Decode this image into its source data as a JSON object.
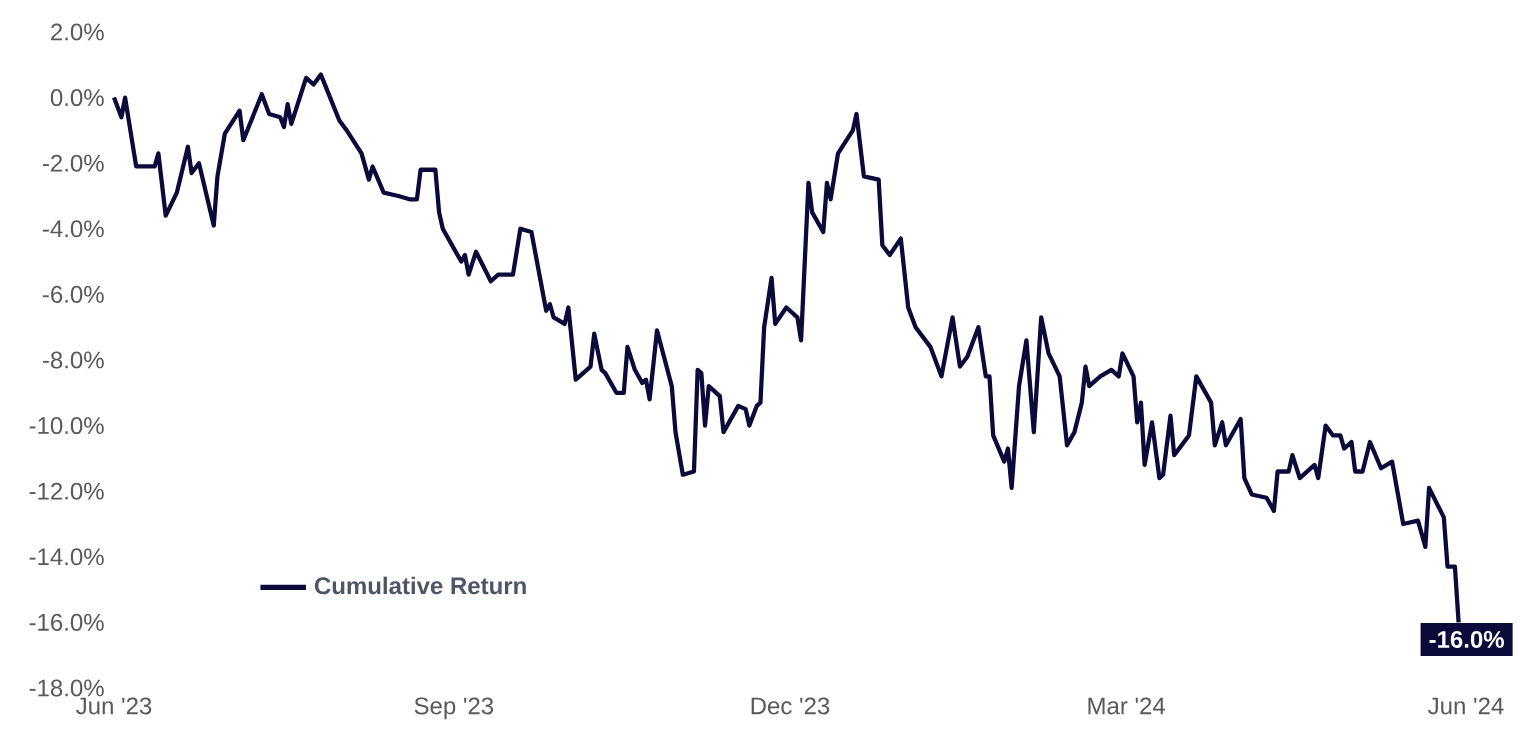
{
  "chart_data": {
    "type": "line",
    "x": [
      "2023-06-01",
      "2023-06-03",
      "2023-06-04",
      "2023-06-06",
      "2023-06-07",
      "2023-06-12",
      "2023-06-13",
      "2023-06-15",
      "2023-06-18",
      "2023-06-21",
      "2023-06-22",
      "2023-06-24",
      "2023-06-28",
      "2023-06-29",
      "2023-07-01",
      "2023-07-05",
      "2023-07-06",
      "2023-07-11",
      "2023-07-13",
      "2023-07-16",
      "2023-07-17",
      "2023-07-18",
      "2023-07-19",
      "2023-07-23",
      "2023-07-25",
      "2023-07-27",
      "2023-08-01",
      "2023-08-03",
      "2023-08-07",
      "2023-08-09",
      "2023-08-10",
      "2023-08-13",
      "2023-08-17",
      "2023-08-20",
      "2023-08-22",
      "2023-08-23",
      "2023-08-27",
      "2023-08-28",
      "2023-08-29",
      "2023-09-03",
      "2023-09-04",
      "2023-09-05",
      "2023-09-07",
      "2023-09-11",
      "2023-09-13",
      "2023-09-17",
      "2023-09-19",
      "2023-09-22",
      "2023-09-26",
      "2023-09-27",
      "2023-09-28",
      "2023-10-01",
      "2023-10-02",
      "2023-10-04",
      "2023-10-08",
      "2023-10-09",
      "2023-10-11",
      "2023-10-12",
      "2023-10-15",
      "2023-10-17",
      "2023-10-18",
      "2023-10-20",
      "2023-10-22",
      "2023-10-23",
      "2023-10-24",
      "2023-10-26",
      "2023-10-30",
      "2023-10-31",
      "2023-11-02",
      "2023-11-05",
      "2023-11-06",
      "2023-11-07",
      "2023-11-08",
      "2023-11-09",
      "2023-11-12",
      "2023-11-13",
      "2023-11-17",
      "2023-11-19",
      "2023-11-20",
      "2023-11-22",
      "2023-11-23",
      "2023-11-24",
      "2023-11-26",
      "2023-11-27",
      "2023-11-30",
      "2023-12-03",
      "2023-12-04",
      "2023-12-06",
      "2023-12-07",
      "2023-12-10",
      "2023-12-11",
      "2023-12-12",
      "2023-12-14",
      "2023-12-18",
      "2023-12-19",
      "2023-12-21",
      "2023-12-25",
      "2023-12-26",
      "2023-12-28",
      "2023-12-31",
      "2024-01-02",
      "2024-01-04",
      "2024-01-08",
      "2024-01-11",
      "2024-01-14",
      "2024-01-16",
      "2024-01-18",
      "2024-01-21",
      "2024-01-23",
      "2024-01-24",
      "2024-01-25",
      "2024-01-28",
      "2024-01-29",
      "2024-01-30",
      "2024-02-01",
      "2024-02-03",
      "2024-02-05",
      "2024-02-07",
      "2024-02-09",
      "2024-02-12",
      "2024-02-14",
      "2024-02-16",
      "2024-02-18",
      "2024-02-19",
      "2024-02-20",
      "2024-02-23",
      "2024-02-26",
      "2024-02-28",
      "2024-02-29",
      "2024-03-03",
      "2024-03-04",
      "2024-03-05",
      "2024-03-06",
      "2024-03-08",
      "2024-03-10",
      "2024-03-11",
      "2024-03-13",
      "2024-03-14",
      "2024-03-18",
      "2024-03-20",
      "2024-03-24",
      "2024-03-25",
      "2024-03-27",
      "2024-03-28",
      "2024-04-01",
      "2024-04-02",
      "2024-04-04",
      "2024-04-08",
      "2024-04-10",
      "2024-04-11",
      "2024-04-14",
      "2024-04-15",
      "2024-04-17",
      "2024-04-21",
      "2024-04-22",
      "2024-04-24",
      "2024-04-26",
      "2024-04-28",
      "2024-04-29",
      "2024-05-01",
      "2024-05-02",
      "2024-05-04",
      "2024-05-06",
      "2024-05-09",
      "2024-05-12",
      "2024-05-15",
      "2024-05-19",
      "2024-05-21",
      "2024-05-22",
      "2024-05-26",
      "2024-05-27",
      "2024-05-29",
      "2024-05-30"
    ],
    "series": [
      {
        "name": "Cumulative Return",
        "color": "#0b0b3b",
        "values": [
          0.0,
          -0.6,
          0.0,
          -1.4,
          -2.1,
          -2.1,
          -1.7,
          -3.6,
          -2.9,
          -1.5,
          -2.3,
          -2.0,
          -3.9,
          -2.4,
          -1.1,
          -0.4,
          -1.3,
          0.1,
          -0.5,
          -0.6,
          -0.9,
          -0.2,
          -0.8,
          0.6,
          0.4,
          0.7,
          -0.7,
          -1.0,
          -1.7,
          -2.5,
          -2.1,
          -2.9,
          -3.0,
          -3.1,
          -3.1,
          -2.2,
          -2.2,
          -3.5,
          -4.0,
          -5.0,
          -4.8,
          -5.4,
          -4.7,
          -5.6,
          -5.4,
          -5.4,
          -4.0,
          -4.1,
          -6.5,
          -6.3,
          -6.7,
          -6.9,
          -6.4,
          -8.6,
          -8.2,
          -7.2,
          -8.3,
          -8.4,
          -9.0,
          -9.0,
          -7.6,
          -8.3,
          -8.7,
          -8.6,
          -9.2,
          -7.1,
          -8.8,
          -10.2,
          -11.5,
          -11.4,
          -8.3,
          -8.4,
          -10.0,
          -8.8,
          -9.1,
          -10.2,
          -9.4,
          -9.5,
          -10.0,
          -9.4,
          -9.3,
          -7.0,
          -5.5,
          -6.9,
          -6.4,
          -6.7,
          -7.4,
          -2.6,
          -3.5,
          -4.1,
          -2.6,
          -3.1,
          -1.7,
          -1.0,
          -0.5,
          -2.4,
          -2.5,
          -4.5,
          -4.8,
          -4.3,
          -6.4,
          -7.0,
          -7.6,
          -8.5,
          -6.7,
          -8.2,
          -7.9,
          -7.0,
          -8.5,
          -8.5,
          -10.3,
          -11.1,
          -10.7,
          -11.9,
          -8.8,
          -7.4,
          -10.2,
          -6.7,
          -7.8,
          -8.5,
          -10.6,
          -10.2,
          -9.3,
          -8.2,
          -8.8,
          -8.5,
          -8.3,
          -8.5,
          -7.8,
          -8.5,
          -9.9,
          -9.3,
          -11.2,
          -9.9,
          -11.6,
          -11.5,
          -9.7,
          -10.9,
          -10.3,
          -8.5,
          -9.3,
          -10.6,
          -9.9,
          -10.6,
          -9.8,
          -11.6,
          -12.1,
          -12.2,
          -12.6,
          -11.4,
          -11.4,
          -10.9,
          -11.6,
          -11.2,
          -11.6,
          -10.0,
          -10.3,
          -10.3,
          -10.7,
          -10.5,
          -11.4,
          -11.4,
          -10.5,
          -11.3,
          -11.1,
          -13.0,
          -12.9,
          -13.7,
          -11.9,
          -12.8,
          -14.3,
          -14.3,
          -16.0
        ]
      }
    ],
    "xlim": [
      "2023-06-01",
      "2024-06-01"
    ],
    "xticks": [
      {
        "value": "2023-06-01",
        "label": "Jun '23"
      },
      {
        "value": "2023-09-01",
        "label": "Sep '23"
      },
      {
        "value": "2023-12-01",
        "label": "Dec '23"
      },
      {
        "value": "2024-03-01",
        "label": "Mar '24"
      },
      {
        "value": "2024-06-01",
        "label": "Jun '24"
      }
    ],
    "ylim": [
      -18,
      2
    ],
    "yticks": [
      {
        "value": 2,
        "label": "2.0%"
      },
      {
        "value": 0,
        "label": "0.0%"
      },
      {
        "value": -2,
        "label": "-2.0%"
      },
      {
        "value": -4,
        "label": "-4.0%"
      },
      {
        "value": -6,
        "label": "-6.0%"
      },
      {
        "value": -8,
        "label": "-8.0%"
      },
      {
        "value": -10,
        "label": "-10.0%"
      },
      {
        "value": -12,
        "label": "-12.0%"
      },
      {
        "value": -14,
        "label": "-14.0%"
      },
      {
        "value": -16,
        "label": "-16.0%"
      },
      {
        "value": -18,
        "label": "-18.0%"
      }
    ],
    "annotations": [
      {
        "text": "-16.0%",
        "x": "2024-05-30",
        "y": -16.0
      }
    ],
    "legend": "bottom left"
  }
}
